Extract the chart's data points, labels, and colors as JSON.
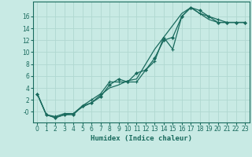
{
  "bg_color": "#c8eae4",
  "grid_color": "#b0d8d0",
  "line_color": "#1a6b5e",
  "xlabel": "Humidex (Indice chaleur)",
  "xlabel_fontsize": 6.5,
  "tick_fontsize": 5.5,
  "xlim": [
    -0.5,
    23.5
  ],
  "ylim": [
    -1.8,
    18.5
  ],
  "yticks": [
    0,
    2,
    4,
    6,
    8,
    10,
    12,
    14,
    16
  ],
  "ytick_labels": [
    "-0",
    "2",
    "4",
    "6",
    "8",
    "10",
    "12",
    "14",
    "16"
  ],
  "xticks": [
    0,
    1,
    2,
    3,
    4,
    5,
    6,
    7,
    8,
    9,
    10,
    11,
    12,
    13,
    14,
    15,
    16,
    17,
    18,
    19,
    20,
    21,
    22,
    23
  ],
  "line1_x": [
    0,
    1,
    2,
    3,
    4,
    5,
    6,
    7,
    8,
    9,
    10,
    11,
    12,
    13,
    14,
    15,
    16,
    17,
    18,
    19,
    20,
    21,
    22,
    23
  ],
  "line1_y": [
    3.0,
    -0.5,
    -1.0,
    -0.5,
    -0.3,
    0.8,
    1.5,
    2.8,
    4.0,
    4.5,
    5.2,
    5.5,
    8.0,
    10.5,
    12.5,
    14.5,
    16.5,
    17.5,
    16.5,
    15.5,
    15.0,
    15.0,
    15.0,
    15.0
  ],
  "line2_x": [
    0,
    1,
    2,
    3,
    4,
    5,
    6,
    7,
    8,
    9,
    10,
    11,
    12,
    13,
    14,
    15,
    16,
    17,
    18,
    19,
    20,
    21,
    22,
    23
  ],
  "line2_y": [
    3.0,
    -0.5,
    -0.8,
    -0.3,
    -0.3,
    1.0,
    2.0,
    3.0,
    5.0,
    5.0,
    5.0,
    5.0,
    7.0,
    8.5,
    12.5,
    10.5,
    16.0,
    17.5,
    16.5,
    16.0,
    15.5,
    15.0,
    15.0,
    15.0
  ],
  "line3_x": [
    0,
    1,
    2,
    3,
    4,
    5,
    6,
    7,
    8,
    9,
    10,
    11,
    12,
    13,
    14,
    15,
    16,
    17,
    18,
    19,
    20,
    21,
    22,
    23
  ],
  "line3_y": [
    3.0,
    -0.5,
    -1.0,
    -0.5,
    -0.5,
    1.0,
    1.5,
    2.5,
    4.5,
    5.5,
    5.0,
    6.5,
    7.0,
    9.0,
    12.0,
    12.5,
    16.0,
    17.5,
    17.0,
    16.0,
    15.0,
    15.0,
    15.0,
    15.0
  ]
}
